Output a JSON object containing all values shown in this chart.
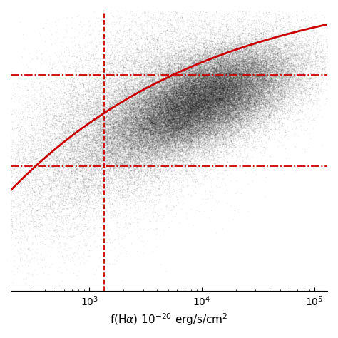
{
  "xlabel": "f(Hα) 10⁻²⁰ erg/s/cm²",
  "xlim": [
    200,
    130000
  ],
  "ylim": [
    -1.5,
    1.2
  ],
  "scatter_seed": 7,
  "vline_x": 1350,
  "hline_y1": 0.58,
  "hline_y2": -0.3,
  "curve_color": "#cc0000",
  "line_color": "#cc0000",
  "scatter_alpha": 0.08,
  "scatter_color": "#111111",
  "scatter_size": 1.5,
  "dashdot_lw": 1.3,
  "vline_lw": 1.3,
  "curve_lw": 2.0,
  "background_color": "#ffffff",
  "xlabel_fontsize": 11,
  "curve_A": 1.5,
  "curve_k": 0.55,
  "curve_x0": 2.85,
  "cloud_log_x_center": 4.0,
  "cloud_log_x_std": 0.42,
  "cloud_y_std": 0.22,
  "cloud_tilt": 0.18,
  "cloud_n": 80000,
  "sparse_n": 25000,
  "sparse_log_x_center": 3.3,
  "sparse_log_x_std": 0.6,
  "sparse_y_std": 0.45
}
